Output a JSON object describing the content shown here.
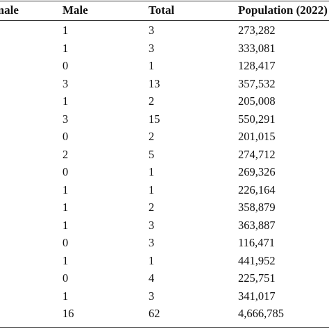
{
  "table": {
    "headers": {
      "female": "Female",
      "male": "Male",
      "total": "Total",
      "population": "Population (2022)"
    },
    "rows": [
      {
        "female": "",
        "male": "1",
        "total": "3",
        "population": "273,282"
      },
      {
        "female": "",
        "male": "1",
        "total": "3",
        "population": "333,081"
      },
      {
        "female": "",
        "male": "0",
        "total": "1",
        "population": "128,417"
      },
      {
        "female": "",
        "male": "3",
        "total": "13",
        "population": "357,532"
      },
      {
        "female": "",
        "male": "1",
        "total": "2",
        "population": "205,008"
      },
      {
        "female": "",
        "male": "3",
        "total": "15",
        "population": "550,291"
      },
      {
        "female": "",
        "male": "0",
        "total": "2",
        "population": "201,015"
      },
      {
        "female": "",
        "male": "2",
        "total": "5",
        "population": "274,712"
      },
      {
        "female": "",
        "male": "0",
        "total": "1",
        "population": "269,326"
      },
      {
        "female": "",
        "male": "1",
        "total": "1",
        "population": "226,164"
      },
      {
        "female": "",
        "male": "1",
        "total": "2",
        "population": "358,879"
      },
      {
        "female": "",
        "male": "1",
        "total": "3",
        "population": "363,887"
      },
      {
        "female": "",
        "male": "0",
        "total": "3",
        "population": "116,471"
      },
      {
        "female": "",
        "male": "1",
        "total": "1",
        "population": "441,952"
      },
      {
        "female": "",
        "male": "0",
        "total": "4",
        "population": "225,751"
      },
      {
        "female": "",
        "male": "1",
        "total": "3",
        "population": "341,017"
      },
      {
        "female": "",
        "male": "16",
        "total": "62",
        "population": "4,666,785"
      }
    ]
  }
}
